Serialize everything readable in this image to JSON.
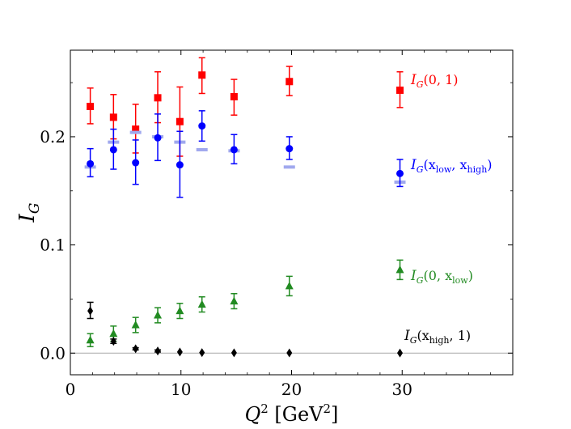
{
  "chart_data": {
    "type": "scatter",
    "title": "",
    "xlabel": {
      "symbol": "Q",
      "sup": "2",
      "unit": "[GeV",
      "unit_sup": "2",
      "unit_close": "]"
    },
    "ylabel": {
      "symbol": "I",
      "sub": "G"
    },
    "xlim": [
      0,
      40
    ],
    "ylim": [
      -0.02,
      0.28
    ],
    "xticks": [
      0,
      10,
      20,
      30
    ],
    "xtick_labels": [
      "0",
      "10",
      "20",
      "30"
    ],
    "yticks": [
      0.0,
      0.1,
      0.2
    ],
    "ytick_labels": [
      "0.0",
      "0.1",
      "0.2"
    ],
    "grid": false,
    "reference_lines": [
      {
        "y": 0,
        "color": "#aaaaaa"
      }
    ],
    "series": [
      {
        "label": {
          "main": "I",
          "sub": "G",
          "args": "(0, 1)"
        },
        "marker": "square",
        "color": "#ff0000",
        "points": [
          {
            "x": 1.8,
            "y": 0.228,
            "lo": 0.212,
            "hi": 0.245
          },
          {
            "x": 3.9,
            "y": 0.218,
            "lo": 0.198,
            "hi": 0.239
          },
          {
            "x": 5.9,
            "y": 0.207,
            "lo": 0.185,
            "hi": 0.23
          },
          {
            "x": 7.9,
            "y": 0.236,
            "lo": 0.213,
            "hi": 0.26
          },
          {
            "x": 9.9,
            "y": 0.214,
            "lo": 0.182,
            "hi": 0.246
          },
          {
            "x": 11.9,
            "y": 0.257,
            "lo": 0.24,
            "hi": 0.273
          },
          {
            "x": 14.8,
            "y": 0.237,
            "lo": 0.22,
            "hi": 0.253
          },
          {
            "x": 19.8,
            "y": 0.251,
            "lo": 0.238,
            "hi": 0.265
          },
          {
            "x": 29.8,
            "y": 0.243,
            "lo": 0.227,
            "hi": 0.26
          }
        ]
      },
      {
        "label": {
          "main": "I",
          "sub": "G",
          "args_open": "(x",
          "sub1": "low",
          "mid": ", x",
          "sub2": "high",
          "close": ")"
        },
        "marker": "circle",
        "color": "#0000ff",
        "band_color": "#a0a8ee",
        "band": [
          {
            "x": 1.8,
            "y": 0.172
          },
          {
            "x": 3.9,
            "y": 0.195
          },
          {
            "x": 5.9,
            "y": 0.204
          },
          {
            "x": 7.9,
            "y": 0.2
          },
          {
            "x": 9.9,
            "y": 0.195
          },
          {
            "x": 11.9,
            "y": 0.188
          },
          {
            "x": 14.8,
            "y": 0.187
          },
          {
            "x": 19.8,
            "y": 0.172
          },
          {
            "x": 29.8,
            "y": 0.158
          }
        ],
        "points": [
          {
            "x": 1.8,
            "y": 0.175,
            "lo": 0.163,
            "hi": 0.189
          },
          {
            "x": 3.9,
            "y": 0.188,
            "lo": 0.17,
            "hi": 0.207
          },
          {
            "x": 5.9,
            "y": 0.176,
            "lo": 0.156,
            "hi": 0.197
          },
          {
            "x": 7.9,
            "y": 0.199,
            "lo": 0.178,
            "hi": 0.221
          },
          {
            "x": 9.9,
            "y": 0.174,
            "lo": 0.144,
            "hi": 0.205
          },
          {
            "x": 11.9,
            "y": 0.21,
            "lo": 0.196,
            "hi": 0.224
          },
          {
            "x": 14.8,
            "y": 0.188,
            "lo": 0.175,
            "hi": 0.202
          },
          {
            "x": 19.8,
            "y": 0.189,
            "lo": 0.179,
            "hi": 0.2
          },
          {
            "x": 29.8,
            "y": 0.166,
            "lo": 0.154,
            "hi": 0.179
          }
        ]
      },
      {
        "label": {
          "main": "I",
          "sub": "G",
          "args_open": "(0, x",
          "sub1": "low",
          "close": ")"
        },
        "marker": "triangle",
        "color": "#228b22",
        "points": [
          {
            "x": 1.8,
            "y": 0.012,
            "lo": 0.006,
            "hi": 0.018
          },
          {
            "x": 3.9,
            "y": 0.018,
            "lo": 0.011,
            "hi": 0.025
          },
          {
            "x": 5.9,
            "y": 0.026,
            "lo": 0.019,
            "hi": 0.033
          },
          {
            "x": 7.9,
            "y": 0.035,
            "lo": 0.028,
            "hi": 0.042
          },
          {
            "x": 9.9,
            "y": 0.039,
            "lo": 0.032,
            "hi": 0.046
          },
          {
            "x": 11.9,
            "y": 0.045,
            "lo": 0.038,
            "hi": 0.052
          },
          {
            "x": 14.8,
            "y": 0.048,
            "lo": 0.041,
            "hi": 0.055
          },
          {
            "x": 19.8,
            "y": 0.062,
            "lo": 0.053,
            "hi": 0.071
          },
          {
            "x": 29.8,
            "y": 0.077,
            "lo": 0.068,
            "hi": 0.086
          }
        ]
      },
      {
        "label": {
          "main": "I",
          "sub": "G",
          "args_open": "(x",
          "sub1": "high",
          "close": ", 1)"
        },
        "marker": "diamond",
        "color": "#000000",
        "points": [
          {
            "x": 1.8,
            "y": 0.039,
            "lo": 0.032,
            "hi": 0.047
          },
          {
            "x": 3.9,
            "y": 0.011,
            "lo": 0.009,
            "hi": 0.013
          },
          {
            "x": 5.9,
            "y": 0.004,
            "lo": 0.003,
            "hi": 0.005
          },
          {
            "x": 7.9,
            "y": 0.002,
            "lo": 0.001,
            "hi": 0.003
          },
          {
            "x": 9.9,
            "y": 0.001,
            "lo": 0.001,
            "hi": 0.001
          },
          {
            "x": 11.9,
            "y": 0.0005,
            "lo": 0.0005,
            "hi": 0.0005
          },
          {
            "x": 14.8,
            "y": 0.0003,
            "lo": 0.0003,
            "hi": 0.0003
          },
          {
            "x": 19.8,
            "y": 0.0002,
            "lo": 0.0002,
            "hi": 0.0002
          },
          {
            "x": 29.8,
            "y": 0.0001,
            "lo": 0.0001,
            "hi": 0.0001
          }
        ]
      }
    ]
  }
}
